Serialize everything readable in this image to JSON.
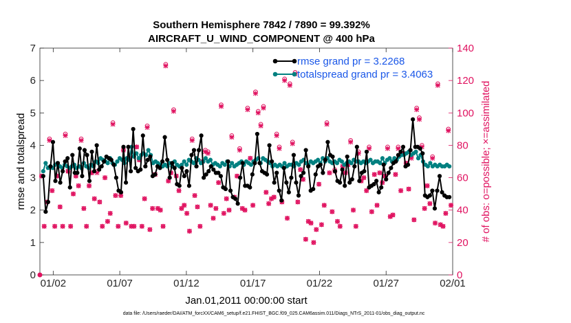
{
  "chart_data": {
    "type": "line",
    "title_line1": "Southern Hemisphere 7842 / 7890 = 99.392%",
    "title_line2": "AIRCRAFT_U_WIND_COMPONENT @ 400 hPa",
    "xlabel": "Jan.01,2011 00:00:00 start",
    "ylabel_left": "rmse and totalspread",
    "ylabel_right": "# of obs: o=possible; ×=assimilated",
    "xlim": [
      0,
      31
    ],
    "ylim_left": [
      0,
      7
    ],
    "ylim_right": [
      0,
      140
    ],
    "x_ticks": [
      {
        "value": 1,
        "label": "01/02"
      },
      {
        "value": 6,
        "label": "01/07"
      },
      {
        "value": 11,
        "label": "01/12"
      },
      {
        "value": 16,
        "label": "01/17"
      },
      {
        "value": 21,
        "label": "01/22"
      },
      {
        "value": 26,
        "label": "01/27"
      },
      {
        "value": 31,
        "label": "02/01"
      }
    ],
    "y_ticks_left": [
      0,
      1,
      2,
      3,
      4,
      5,
      6,
      7
    ],
    "y_ticks_right": [
      0,
      20,
      40,
      60,
      80,
      100,
      120,
      140
    ],
    "legend": [
      {
        "label": "rmse grand pr = 3.2268",
        "color": "#000000"
      },
      {
        "label": "totalspread grand pr = 3.4063",
        "color": "#008080"
      }
    ],
    "rmse": {
      "name": "rmse",
      "color": "#000000",
      "values": [
        3.05,
        1.95,
        2.25,
        3.35,
        4.1,
        2.9,
        3.45,
        2.85,
        3.2,
        3.5,
        3.6,
        2.7,
        3.7,
        3.15,
        3.15,
        3.9,
        3.05,
        3.85,
        3.7,
        2.9,
        3.8,
        3.2,
        4.0,
        3.25,
        3.35,
        3.5,
        3.65,
        3.6,
        3.55,
        3.4,
        3.0,
        2.6,
        2.55,
        3.95,
        2.85,
        3.95,
        3.2,
        4.5,
        3.3,
        3.2,
        3.25,
        4.3,
        3.35,
        3.55,
        3.65,
        3.05,
        3.1,
        3.35,
        3.3,
        3.5,
        4.25,
        3.55,
        3.0,
        3.45,
        3.3,
        2.8,
        2.75,
        3.3,
        3.05,
        3.2,
        2.75,
        3.7,
        3.85,
        3.35,
        3.85,
        4.3,
        3.0,
        3.1,
        3.2,
        3.35,
        3.25,
        3.15,
        3.15,
        3.05,
        2.7,
        2.65,
        3.5,
        2.6,
        2.4,
        2.35,
        2.2,
        3.0,
        3.45,
        2.75,
        2.75,
        2.7,
        3.1,
        3.45,
        4.35,
        3.45,
        3.2,
        3.15,
        3.1,
        4.0,
        3.5,
        2.85,
        3.15,
        2.6,
        2.3,
        3.3,
        2.85,
        2.55,
        3.0,
        3.7,
        2.85,
        2.45,
        3.05,
        3.15,
        3.85,
        3.35,
        2.6,
        2.65,
        3.1,
        3.35,
        3.4,
        3.15,
        3.55,
        4.1,
        3.7,
        3.65,
        3.2,
        2.9,
        2.85,
        3.25,
        2.75,
        3.65,
        2.85,
        2.95,
        3.35,
        3.95,
        2.9,
        3.15,
        3.2,
        3.8,
        2.7,
        2.75,
        2.8,
        2.9,
        2.55,
        2.7,
        3.4,
        2.95,
        3.15,
        3.3,
        3.45,
        3.5,
        3.7,
        3.8,
        3.95,
        3.35,
        3.4,
        3.85,
        4.8,
        3.95,
        3.95,
        3.9,
        3.75,
        2.45,
        2.4,
        2.45,
        2.6,
        2.05,
        2.6,
        3.05,
        2.55,
        2.45,
        2.4,
        2.4
      ]
    },
    "totalspread": {
      "name": "totalspread",
      "color": "#008080",
      "values": [
        3.2,
        3.45,
        3.3,
        3.35,
        3.3,
        3.4,
        3.45,
        3.35,
        3.3,
        3.4,
        3.35,
        3.3,
        3.35,
        3.4,
        3.3,
        3.35,
        3.3,
        3.45,
        3.35,
        3.3,
        3.4,
        3.35,
        3.5,
        3.45,
        3.6,
        3.55,
        3.5,
        3.45,
        3.6,
        3.45,
        3.4,
        3.5,
        3.6,
        3.55,
        3.45,
        3.6,
        3.55,
        3.95,
        3.65,
        3.75,
        3.6,
        3.7,
        3.75,
        3.7,
        3.85,
        3.7,
        3.45,
        3.5,
        3.45,
        3.4,
        3.35,
        3.4,
        3.35,
        3.45,
        3.35,
        3.5,
        3.4,
        3.35,
        3.4,
        3.5,
        3.4,
        3.55,
        3.5,
        3.45,
        3.6,
        3.55,
        3.45,
        3.5,
        3.6,
        3.5,
        3.55,
        3.4,
        3.45,
        3.4,
        3.35,
        3.45,
        3.4,
        3.5,
        3.35,
        3.45,
        3.35,
        3.4,
        3.45,
        3.5,
        3.4,
        3.5,
        3.45,
        3.4,
        3.5,
        3.55,
        3.6,
        3.45,
        3.6,
        3.55,
        3.5,
        3.45,
        3.35,
        3.4,
        3.35,
        3.4,
        3.35,
        3.45,
        3.35,
        3.4,
        3.4,
        3.35,
        3.45,
        3.4,
        3.5,
        3.55,
        3.45,
        3.4,
        3.5,
        3.45,
        3.5,
        3.55,
        3.45,
        3.6,
        3.5,
        3.6,
        3.5,
        3.45,
        3.5,
        3.45,
        3.55,
        3.5,
        3.4,
        3.45,
        3.5,
        3.45,
        3.55,
        3.5,
        3.5,
        3.45,
        3.5,
        3.45,
        3.5,
        3.55,
        3.45,
        3.5,
        3.5,
        3.45,
        3.6,
        3.45,
        3.55,
        3.6,
        3.5,
        3.6,
        3.55,
        3.65,
        3.7,
        3.7,
        3.75,
        3.8,
        3.7,
        3.75,
        3.8,
        3.6,
        3.7,
        3.5,
        3.4,
        3.35,
        3.45,
        3.35,
        3.4,
        3.35,
        3.4,
        3.35,
        3.35,
        3.4,
        3.35
      ]
    },
    "obs_possible": {
      "name": "possible",
      "color": "#E0115F",
      "values": [
        61,
        30,
        45,
        84,
        52,
        30,
        61,
        42,
        30,
        87,
        64,
        30,
        50,
        61,
        55,
        84,
        41,
        30,
        55,
        63,
        47,
        64,
        45,
        30,
        60,
        33,
        38,
        94,
        49,
        30,
        49,
        77,
        32,
        72,
        30,
        30,
        79,
        71,
        30,
        47,
        92,
        28,
        41,
        62,
        41,
        40,
        30,
        130,
        58,
        63,
        102,
        61,
        52,
        41,
        43,
        38,
        27,
        84,
        49,
        42,
        30,
        70,
        77,
        76,
        43,
        35,
        41,
        57,
        105,
        38,
        47,
        40,
        86,
        48,
        61,
        78,
        41,
        40,
        103,
        72,
        43,
        113,
        101,
        93,
        104,
        51,
        44,
        47,
        48,
        87,
        79,
        45,
        121,
        35,
        118,
        82,
        125,
        45,
        65,
        59,
        22,
        33,
        32,
        20,
        28,
        56,
        31,
        43,
        94,
        63,
        39,
        65,
        33,
        30,
        67,
        63,
        68,
        83,
        40,
        30,
        76,
        58,
        60,
        52,
        79,
        39,
        62,
        43,
        63,
        57,
        61,
        79,
        36,
        37,
        62,
        79,
        52,
        75,
        69,
        53,
        73,
        34,
        103,
        97,
        80,
        41,
        55,
        44,
        73,
        32,
        118,
        31,
        30,
        38,
        90,
        43
      ]
    },
    "obs_assimilated": {
      "name": "assimilated",
      "color": "#E0115F",
      "values": [
        61,
        30,
        45,
        83,
        52,
        30,
        61,
        42,
        30,
        86,
        64,
        30,
        50,
        61,
        55,
        83,
        41,
        30,
        55,
        63,
        47,
        63,
        45,
        30,
        60,
        33,
        38,
        93,
        49,
        30,
        49,
        77,
        32,
        72,
        30,
        30,
        79,
        71,
        30,
        47,
        91,
        28,
        41,
        62,
        41,
        40,
        30,
        129,
        58,
        63,
        101,
        61,
        52,
        41,
        43,
        38,
        27,
        83,
        49,
        42,
        30,
        70,
        76,
        75,
        43,
        35,
        41,
        57,
        104,
        38,
        47,
        40,
        85,
        48,
        61,
        77,
        41,
        40,
        102,
        72,
        43,
        112,
        100,
        92,
        103,
        51,
        44,
        47,
        48,
        86,
        78,
        45,
        120,
        35,
        117,
        81,
        124,
        45,
        65,
        59,
        22,
        33,
        32,
        20,
        28,
        56,
        31,
        43,
        93,
        63,
        39,
        64,
        33,
        30,
        67,
        63,
        68,
        82,
        40,
        30,
        75,
        58,
        60,
        52,
        78,
        39,
        62,
        43,
        63,
        57,
        61,
        78,
        36,
        37,
        62,
        78,
        52,
        75,
        69,
        53,
        72,
        34,
        102,
        96,
        79,
        41,
        55,
        44,
        72,
        32,
        117,
        31,
        30,
        38,
        89,
        43
      ]
    },
    "footer": "data file: /Users/raeder/DAI/ATM_forcXX/CAM6_setup/f.e21.FHIST_BGC.f09_025.CAM6assim.011/Diags_NTrS_2011-01/obs_diag_output.nc"
  }
}
